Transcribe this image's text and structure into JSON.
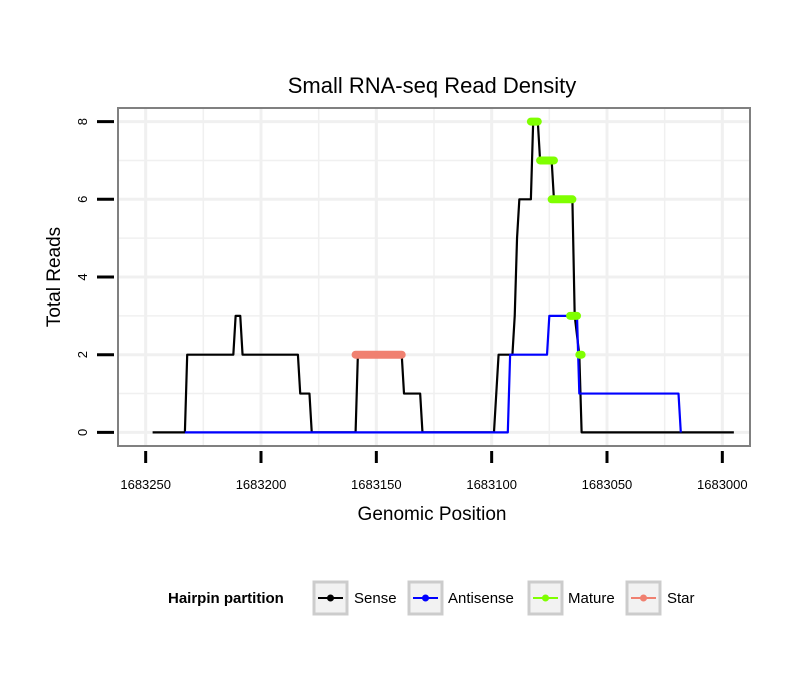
{
  "chart_data": {
    "type": "line",
    "title": "Small RNA-seq Read Density",
    "xlabel": "Genomic Position",
    "ylabel": "Total Reads",
    "xlim": [
      1683262,
      1682988
    ],
    "ylim": [
      -0.35,
      8.35
    ],
    "x_reversed": true,
    "grid": true,
    "x_ticks": [
      1683250,
      1683200,
      1683150,
      1683100,
      1683050,
      1683000
    ],
    "x_tick_labels": [
      "1683250",
      "1683200",
      "1683150",
      "1683100",
      "1683050",
      "1683000"
    ],
    "y_ticks": [
      0,
      2,
      4,
      6,
      8
    ],
    "y_tick_labels": [
      "0",
      "2",
      "4",
      "6",
      "8"
    ],
    "legend_position": "bottom",
    "legend_title": "Hairpin partition",
    "series": [
      {
        "name": "Sense",
        "color": "#000000",
        "style": "line",
        "points": [
          [
            1683247,
            0
          ],
          [
            1683233,
            0
          ],
          [
            1683232,
            2
          ],
          [
            1683212,
            2
          ],
          [
            1683211,
            3
          ],
          [
            1683209,
            3
          ],
          [
            1683208,
            2
          ],
          [
            1683184,
            2
          ],
          [
            1683183,
            1
          ],
          [
            1683179,
            1
          ],
          [
            1683178,
            0
          ],
          [
            1683159,
            0
          ],
          [
            1683158,
            2
          ],
          [
            1683139,
            2
          ],
          [
            1683138,
            1
          ],
          [
            1683131,
            1
          ],
          [
            1683130,
            0
          ],
          [
            1683099,
            0
          ],
          [
            1683097,
            2
          ],
          [
            1683091,
            2
          ],
          [
            1683090,
            3
          ],
          [
            1683089,
            5
          ],
          [
            1683088,
            6
          ],
          [
            1683083,
            6
          ],
          [
            1683082,
            8
          ],
          [
            1683080,
            8
          ],
          [
            1683079,
            7
          ],
          [
            1683074,
            7
          ],
          [
            1683073,
            6
          ],
          [
            1683065,
            6
          ],
          [
            1683064,
            3
          ],
          [
            1683062,
            2
          ],
          [
            1683061,
            0
          ],
          [
            1682995,
            0
          ]
        ]
      },
      {
        "name": "Antisense",
        "color": "#0000ff",
        "style": "line",
        "points": [
          [
            1683233,
            0
          ],
          [
            1683093,
            0
          ],
          [
            1683092,
            2
          ],
          [
            1683076,
            2
          ],
          [
            1683075,
            3
          ],
          [
            1683063,
            3
          ],
          [
            1683062,
            1
          ],
          [
            1683019,
            1
          ],
          [
            1683018,
            0
          ]
        ]
      },
      {
        "name": "Mature",
        "color": "#7fff00",
        "style": "thick-segments",
        "segments": [
          [
            [
              1683083,
              8
            ],
            [
              1683080,
              8
            ]
          ],
          [
            [
              1683079,
              7
            ],
            [
              1683073,
              7
            ]
          ],
          [
            [
              1683074,
              6
            ],
            [
              1683065,
              6
            ]
          ],
          [
            [
              1683066,
              3
            ],
            [
              1683063,
              3
            ]
          ],
          [
            [
              1683062,
              2
            ],
            [
              1683061,
              2
            ]
          ]
        ]
      },
      {
        "name": "Star",
        "color": "#f08070",
        "style": "thick-segments",
        "segments": [
          [
            [
              1683159,
              2
            ],
            [
              1683139,
              2
            ]
          ]
        ]
      }
    ]
  }
}
